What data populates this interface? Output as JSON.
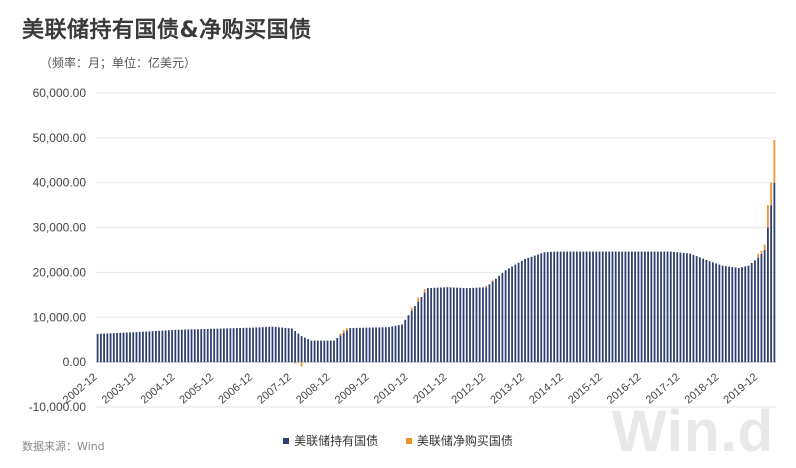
{
  "chart_data": {
    "type": "bar",
    "title": "美联储持有国债&净购买国债",
    "subtitle": "（频率：月；单位：亿美元）",
    "source": "数据来源：Wind",
    "watermark": "Win.d",
    "ylim": [
      -10000,
      60000
    ],
    "yticks": [
      "60,000.00",
      "50,000.00",
      "40,000.00",
      "30,000.00",
      "20,000.00",
      "10,000.00",
      "0.00",
      "-10,000.00"
    ],
    "ytick_values": [
      60000,
      50000,
      40000,
      30000,
      20000,
      10000,
      0,
      -10000
    ],
    "xticks": [
      "2002-12",
      "2003-12",
      "2004-12",
      "2005-12",
      "2006-12",
      "2007-12",
      "2008-12",
      "2009-12",
      "2010-12",
      "2011-12",
      "2012-12",
      "2013-12",
      "2014-12",
      "2015-12",
      "2016-12",
      "2017-12",
      "2018-12",
      "2019-12"
    ],
    "grid": true,
    "legend_position": "bottom",
    "colors": {
      "holdings": "#2e3e6e",
      "net_purchase": "#f0922b"
    },
    "start": "2002-12",
    "end": "2020-05",
    "series": [
      {
        "name": "美联储持有国债",
        "anchors": [
          [
            "2002-12",
            6300
          ],
          [
            "2003-12",
            6700
          ],
          [
            "2004-12",
            7200
          ],
          [
            "2005-12",
            7450
          ],
          [
            "2006-12",
            7700
          ],
          [
            "2007-06",
            7900
          ],
          [
            "2007-12",
            7500
          ],
          [
            "2008-03",
            5800
          ],
          [
            "2008-06",
            4800
          ],
          [
            "2009-01",
            4800
          ],
          [
            "2009-03",
            6000
          ],
          [
            "2009-06",
            7600
          ],
          [
            "2010-06",
            7800
          ],
          [
            "2010-10",
            8400
          ],
          [
            "2011-01",
            11500
          ],
          [
            "2011-06",
            16500
          ],
          [
            "2011-12",
            16700
          ],
          [
            "2012-06",
            16500
          ],
          [
            "2012-12",
            16700
          ],
          [
            "2013-06",
            20500
          ],
          [
            "2013-12",
            23000
          ],
          [
            "2014-06",
            24500
          ],
          [
            "2014-10",
            24650
          ],
          [
            "2017-09",
            24650
          ],
          [
            "2018-03",
            24200
          ],
          [
            "2018-09",
            22500
          ],
          [
            "2019-01",
            21500
          ],
          [
            "2019-06",
            21000
          ],
          [
            "2019-09",
            21500
          ],
          [
            "2019-12",
            23300
          ],
          [
            "2020-02",
            25000
          ],
          [
            "2020-03",
            30000
          ],
          [
            "2020-04",
            35000
          ],
          [
            "2020-05",
            40000
          ]
        ]
      },
      {
        "name": "美联储净购买国债",
        "points": [
          [
            "2008-03",
            -1000
          ],
          [
            "2008-01",
            -300
          ],
          [
            "2009-03",
            400
          ],
          [
            "2009-04",
            600
          ],
          [
            "2009-05",
            500
          ],
          [
            "2011-01",
            700
          ],
          [
            "2011-03",
            900
          ],
          [
            "2011-05",
            800
          ],
          [
            "2012-12",
            300
          ],
          [
            "2013-02",
            300
          ],
          [
            "2019-12",
            800
          ],
          [
            "2020-01",
            700
          ],
          [
            "2020-02",
            1200
          ],
          [
            "2020-03",
            5000
          ],
          [
            "2020-04",
            5000
          ],
          [
            "2020-05",
            9500
          ]
        ]
      }
    ]
  }
}
